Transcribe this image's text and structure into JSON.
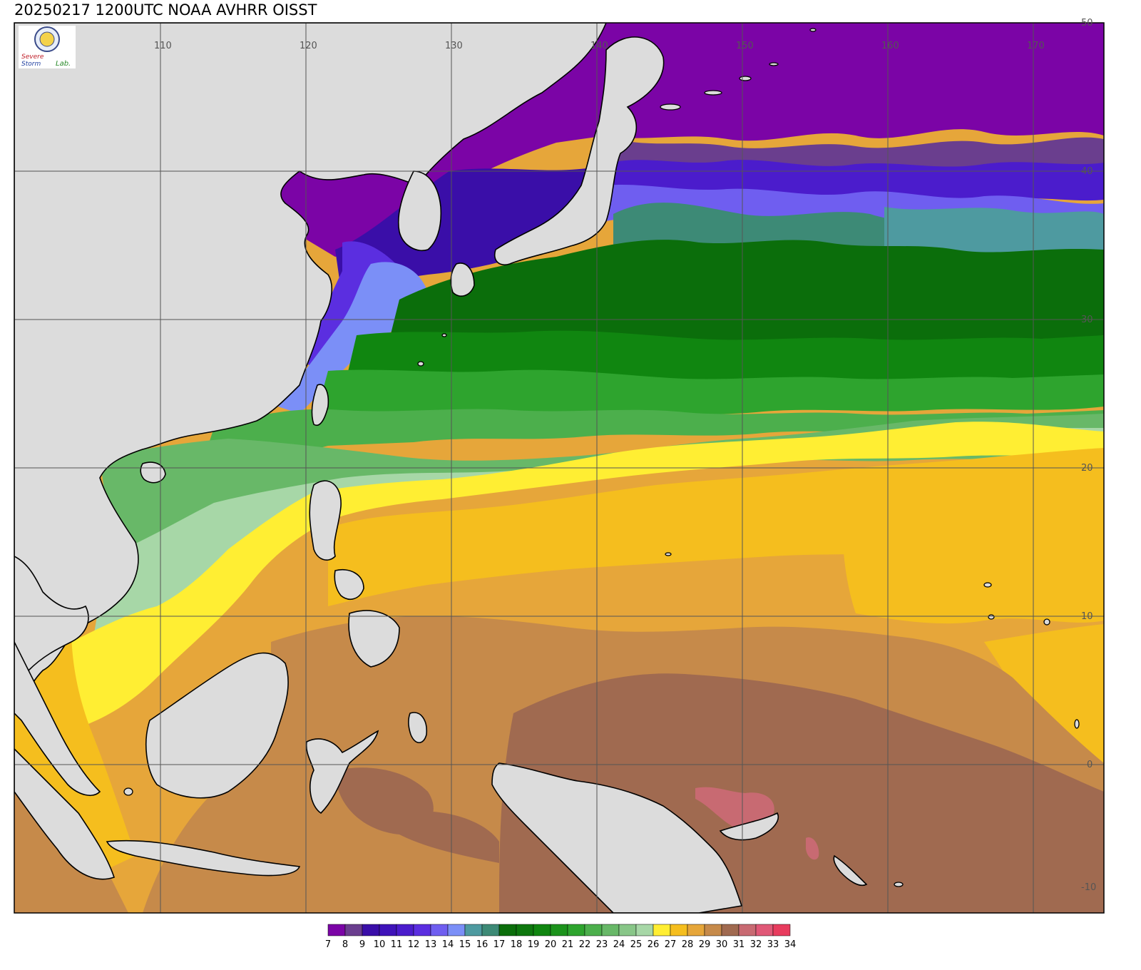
{
  "title": "20250217 1200UTC NOAA AVHRR OISST",
  "logo": {
    "line1": "Severe",
    "line2": "Storm",
    "line3": "Lab."
  },
  "axes": {
    "lon_ticks": [
      "110",
      "120",
      "130",
      "140",
      "150",
      "160",
      "170"
    ],
    "lat_ticks": [
      "50",
      "40",
      "30",
      "20",
      "10",
      "0",
      "-10"
    ],
    "lon_range": [
      100,
      175
    ],
    "lat_range": [
      -10,
      50
    ]
  },
  "colorbar": {
    "labels": [
      "7",
      "8",
      "9",
      "10",
      "11",
      "12",
      "13",
      "14",
      "15",
      "16",
      "17",
      "18",
      "19",
      "20",
      "21",
      "22",
      "23",
      "24",
      "25",
      "26",
      "27",
      "28",
      "29",
      "30",
      "31",
      "32",
      "33",
      "34"
    ],
    "colors": [
      "#7b04a6",
      "#6a3e8e",
      "#3a0ea8",
      "#3f13b9",
      "#4b1ccc",
      "#5b2ee0",
      "#6f5ef0",
      "#7b8ff7",
      "#4e9aa0",
      "#3d8a76",
      "#0b6e0b",
      "#0e770e",
      "#108610",
      "#1c931c",
      "#2ea42e",
      "#4caf4c",
      "#68b868",
      "#88c688",
      "#a7d7a7",
      "#ffee33",
      "#f5be1e",
      "#e6a63a",
      "#c68a4a",
      "#a06a50",
      "#c86a72",
      "#e05877",
      "#e83c5e"
    ]
  },
  "colors": {
    "land": "#dcdcdc",
    "coast": "#000000",
    "grid": "#555555"
  }
}
